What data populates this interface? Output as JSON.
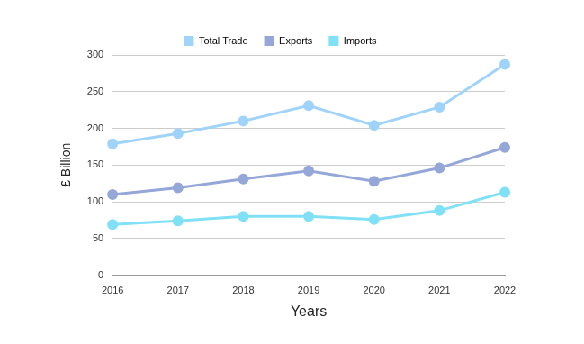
{
  "chart_data": {
    "type": "line",
    "x_label": "Years",
    "y_label": "£ Billion",
    "categories": [
      "2016",
      "2017",
      "2018",
      "2019",
      "2020",
      "2021",
      "2022"
    ],
    "series": [
      {
        "name": "Total Trade",
        "color": "#9fd3fa",
        "marker": "circle",
        "values": [
          179,
          193,
          210,
          231,
          204,
          229,
          287
        ]
      },
      {
        "name": "Exports",
        "color": "#94a7d8",
        "marker": "circle",
        "values": [
          110,
          119,
          131,
          142,
          128,
          146,
          174
        ]
      },
      {
        "name": "Imports",
        "color": "#7fe0f6",
        "marker": "circle",
        "values": [
          69,
          74,
          80,
          80,
          76,
          88,
          113
        ]
      }
    ],
    "ylim": [
      0,
      300
    ],
    "yticks": [
      0,
      50,
      100,
      150,
      200,
      250,
      300
    ],
    "grid": true,
    "legend": "top"
  }
}
